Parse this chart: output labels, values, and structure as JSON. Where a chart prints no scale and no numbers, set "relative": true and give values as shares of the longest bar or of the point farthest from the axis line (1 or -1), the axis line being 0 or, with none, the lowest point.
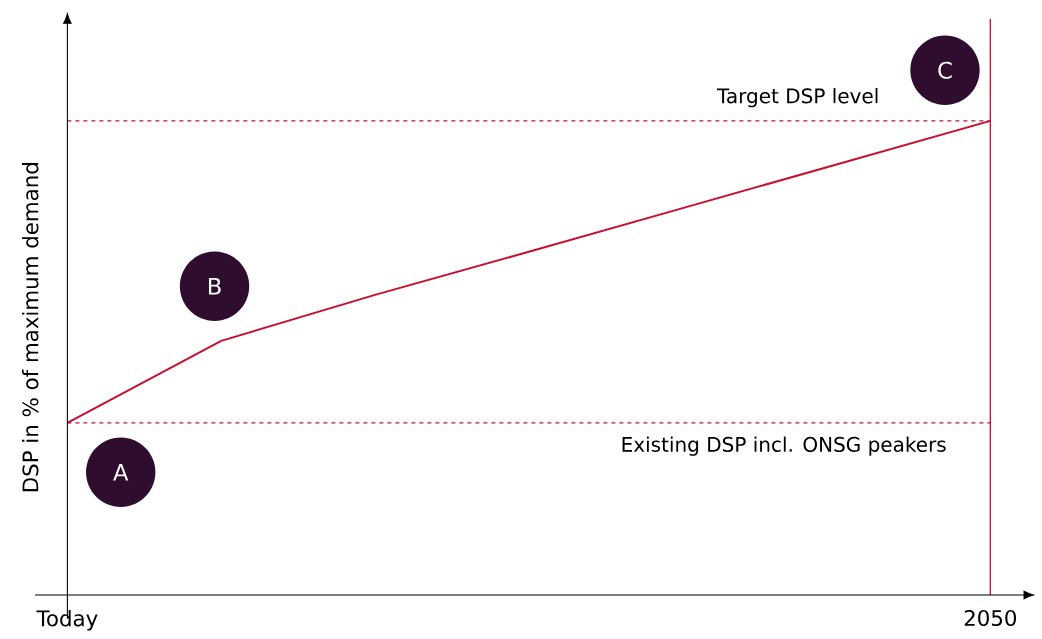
{
  "chart_data": {
    "type": "line",
    "relative": true,
    "ylabel": "DSP in % of maximum demand",
    "categories": [
      "Today",
      null,
      null,
      null,
      null,
      null,
      "2050"
    ],
    "values": [
      0.363,
      0.536,
      0.633,
      0.724,
      0.816,
      0.908,
      1
    ],
    "color": "#c8102e",
    "ref_lines": [
      {
        "axis": "y",
        "value": 0.363,
        "label": "Existing DSP incl. ONSG peakers",
        "color": "#c8102e",
        "line_style": "dashed"
      },
      {
        "axis": "y",
        "value": 1,
        "label": "Target DSP level",
        "color": "#c8102e",
        "line_style": "dashed"
      },
      {
        "axis": "x",
        "value": "2050",
        "color": "#c8102e",
        "line_style": "solid"
      }
    ],
    "annotations": [
      {
        "text": "A",
        "x": "Today",
        "y": 0.363
      },
      {
        "text": "B",
        "y": 0.536
      },
      {
        "text": "C",
        "x": "2050",
        "y": 1
      }
    ]
  }
}
